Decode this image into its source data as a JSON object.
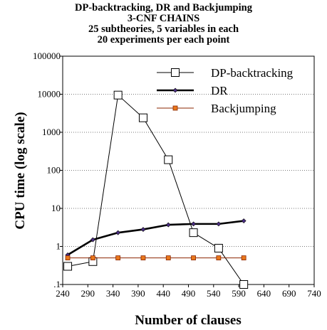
{
  "chart_data": {
    "type": "line",
    "title_lines": [
      "DP-backtracking, DR and Backjumping",
      "3-CNF  CHAINS",
      "25 subtheories, 5 variables  in each",
      "20 experiments per each point"
    ],
    "xlabel": "Number of clauses",
    "ylabel": "CPU time (log scale)",
    "xlim": [
      240,
      740
    ],
    "ylim": [
      0.1,
      100000
    ],
    "y_scale": "log",
    "x_ticks": [
      "240",
      "290",
      "340",
      "390",
      "440",
      "490",
      "540",
      "590",
      "640",
      "690",
      "740"
    ],
    "y_ticks": [
      {
        "value": 0.1,
        "label": ".1"
      },
      {
        "value": 1,
        "label": "1"
      },
      {
        "value": 10,
        "label": "10"
      },
      {
        "value": 100,
        "label": "100"
      },
      {
        "value": 1000,
        "label": "1000"
      },
      {
        "value": 10000,
        "label": "10000"
      },
      {
        "value": 100000,
        "label": "100000"
      }
    ],
    "legend_position": "top-right",
    "series": [
      {
        "name": "DP-backtracking",
        "marker": "open-square",
        "color": "#000000",
        "line_width": 1,
        "x": [
          250,
          300,
          350,
          400,
          450,
          500,
          550,
          600
        ],
        "y": [
          0.3,
          0.4,
          9500,
          2400,
          190,
          2.3,
          0.9,
          0.1
        ]
      },
      {
        "name": "DR",
        "marker": "small-diamond",
        "color": "#000000",
        "marker_color": "#4b2e83",
        "line_width": 2.6,
        "x": [
          250,
          300,
          350,
          400,
          450,
          500,
          550,
          600
        ],
        "y": [
          0.6,
          1.5,
          2.3,
          2.8,
          3.7,
          3.9,
          3.9,
          4.7
        ]
      },
      {
        "name": "Backjumping",
        "marker": "filled-square",
        "color": "#8b2500",
        "marker_color": "#e8781c",
        "line_width": 1,
        "x": [
          250,
          300,
          350,
          400,
          450,
          500,
          550,
          600
        ],
        "y": [
          0.5,
          0.5,
          0.5,
          0.5,
          0.5,
          0.5,
          0.5,
          0.5
        ]
      }
    ]
  }
}
